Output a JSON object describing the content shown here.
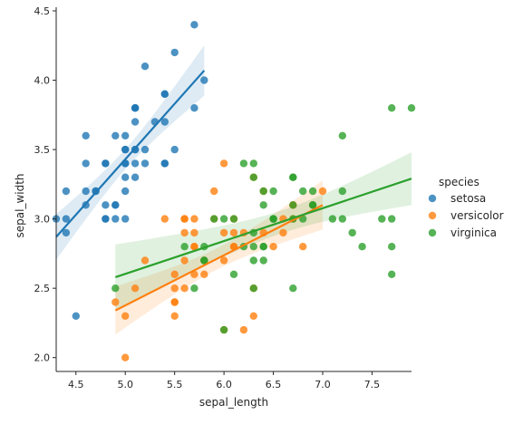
{
  "chart_data": {
    "type": "scatter",
    "title": "",
    "xlabel": "sepal_length",
    "ylabel": "sepal_width",
    "xlim": [
      4.3,
      7.9
    ],
    "ylim": [
      1.9,
      4.5
    ],
    "xticks": [
      "4.5",
      "5.0",
      "5.5",
      "6.0",
      "6.5",
      "7.0",
      "7.5"
    ],
    "yticks": [
      "2.0",
      "2.5",
      "3.0",
      "3.5",
      "4.0",
      "4.5"
    ],
    "grid": false,
    "legend": {
      "title": "species",
      "placement": "right"
    },
    "series": [
      {
        "name": "setosa",
        "color": "#1f77b4",
        "points": [
          [
            5.1,
            3.5
          ],
          [
            4.9,
            3.0
          ],
          [
            4.7,
            3.2
          ],
          [
            4.6,
            3.1
          ],
          [
            5.0,
            3.6
          ],
          [
            5.4,
            3.9
          ],
          [
            4.6,
            3.4
          ],
          [
            5.0,
            3.4
          ],
          [
            4.4,
            2.9
          ],
          [
            4.9,
            3.1
          ],
          [
            5.4,
            3.7
          ],
          [
            4.8,
            3.4
          ],
          [
            4.8,
            3.0
          ],
          [
            4.3,
            3.0
          ],
          [
            5.8,
            4.0
          ],
          [
            5.7,
            4.4
          ],
          [
            5.4,
            3.9
          ],
          [
            5.1,
            3.5
          ],
          [
            5.7,
            3.8
          ],
          [
            5.1,
            3.8
          ],
          [
            5.4,
            3.4
          ],
          [
            5.1,
            3.7
          ],
          [
            4.6,
            3.6
          ],
          [
            5.1,
            3.3
          ],
          [
            4.8,
            3.4
          ],
          [
            5.0,
            3.0
          ],
          [
            5.0,
            3.4
          ],
          [
            5.2,
            3.5
          ],
          [
            5.2,
            3.4
          ],
          [
            4.7,
            3.2
          ],
          [
            4.8,
            3.1
          ],
          [
            5.4,
            3.4
          ],
          [
            5.2,
            4.1
          ],
          [
            5.5,
            4.2
          ],
          [
            4.9,
            3.1
          ],
          [
            5.0,
            3.2
          ],
          [
            5.5,
            3.5
          ],
          [
            4.9,
            3.6
          ],
          [
            4.4,
            3.0
          ],
          [
            5.1,
            3.4
          ],
          [
            5.0,
            3.5
          ],
          [
            4.5,
            2.3
          ],
          [
            4.4,
            3.2
          ],
          [
            5.0,
            3.5
          ],
          [
            5.1,
            3.8
          ],
          [
            4.8,
            3.0
          ],
          [
            5.1,
            3.8
          ],
          [
            4.6,
            3.2
          ],
          [
            5.3,
            3.7
          ],
          [
            5.0,
            3.3
          ]
        ],
        "regression": {
          "x": [
            4.3,
            5.8
          ],
          "y": [
            2.87,
            4.07
          ]
        }
      },
      {
        "name": "versicolor",
        "color": "#ff7f0e",
        "points": [
          [
            7.0,
            3.2
          ],
          [
            6.4,
            3.2
          ],
          [
            6.9,
            3.1
          ],
          [
            5.5,
            2.3
          ],
          [
            6.5,
            2.8
          ],
          [
            5.7,
            2.8
          ],
          [
            6.3,
            3.3
          ],
          [
            4.9,
            2.4
          ],
          [
            6.6,
            2.9
          ],
          [
            5.2,
            2.7
          ],
          [
            5.0,
            2.0
          ],
          [
            5.9,
            3.0
          ],
          [
            6.0,
            2.2
          ],
          [
            6.1,
            2.9
          ],
          [
            5.6,
            2.9
          ],
          [
            6.7,
            3.1
          ],
          [
            5.6,
            3.0
          ],
          [
            5.8,
            2.7
          ],
          [
            6.2,
            2.2
          ],
          [
            5.6,
            2.5
          ],
          [
            5.9,
            3.2
          ],
          [
            6.1,
            2.8
          ],
          [
            6.3,
            2.5
          ],
          [
            6.1,
            2.8
          ],
          [
            6.4,
            2.9
          ],
          [
            6.6,
            3.0
          ],
          [
            6.8,
            2.8
          ],
          [
            6.7,
            3.0
          ],
          [
            6.0,
            2.9
          ],
          [
            5.7,
            2.6
          ],
          [
            5.5,
            2.4
          ],
          [
            5.5,
            2.4
          ],
          [
            5.8,
            2.7
          ],
          [
            6.0,
            2.7
          ],
          [
            5.4,
            3.0
          ],
          [
            6.0,
            3.4
          ],
          [
            6.7,
            3.1
          ],
          [
            6.3,
            2.3
          ],
          [
            5.6,
            3.0
          ],
          [
            5.5,
            2.5
          ],
          [
            5.5,
            2.6
          ],
          [
            6.1,
            3.0
          ],
          [
            5.8,
            2.6
          ],
          [
            5.0,
            2.3
          ],
          [
            5.6,
            2.7
          ],
          [
            5.7,
            3.0
          ],
          [
            5.7,
            2.9
          ],
          [
            6.2,
            2.9
          ],
          [
            5.1,
            2.5
          ],
          [
            5.7,
            2.8
          ]
        ],
        "regression": {
          "x": [
            4.9,
            7.0
          ],
          "y": [
            2.34,
            3.1
          ]
        }
      },
      {
        "name": "virginica",
        "color": "#2ca02c",
        "points": [
          [
            6.3,
            3.3
          ],
          [
            5.8,
            2.7
          ],
          [
            7.1,
            3.0
          ],
          [
            6.3,
            2.9
          ],
          [
            6.5,
            3.0
          ],
          [
            7.6,
            3.0
          ],
          [
            4.9,
            2.5
          ],
          [
            7.3,
            2.9
          ],
          [
            6.7,
            2.5
          ],
          [
            7.2,
            3.6
          ],
          [
            6.5,
            3.2
          ],
          [
            6.4,
            2.7
          ],
          [
            6.8,
            3.0
          ],
          [
            5.7,
            2.5
          ],
          [
            5.8,
            2.8
          ],
          [
            6.4,
            3.2
          ],
          [
            6.5,
            3.0
          ],
          [
            7.7,
            3.8
          ],
          [
            7.7,
            2.6
          ],
          [
            6.0,
            2.2
          ],
          [
            6.9,
            3.2
          ],
          [
            5.6,
            2.8
          ],
          [
            7.7,
            2.8
          ],
          [
            6.3,
            2.7
          ],
          [
            6.7,
            3.3
          ],
          [
            7.2,
            3.2
          ],
          [
            6.2,
            2.8
          ],
          [
            6.1,
            3.0
          ],
          [
            6.4,
            2.8
          ],
          [
            7.2,
            3.0
          ],
          [
            7.4,
            2.8
          ],
          [
            7.9,
            3.8
          ],
          [
            6.4,
            2.8
          ],
          [
            6.3,
            2.8
          ],
          [
            6.1,
            2.6
          ],
          [
            7.7,
            3.0
          ],
          [
            6.3,
            3.4
          ],
          [
            6.4,
            3.1
          ],
          [
            6.0,
            3.0
          ],
          [
            6.9,
            3.1
          ],
          [
            6.7,
            3.1
          ],
          [
            6.9,
            3.1
          ],
          [
            5.8,
            2.7
          ],
          [
            6.8,
            3.2
          ],
          [
            6.7,
            3.3
          ],
          [
            6.7,
            3.0
          ],
          [
            6.3,
            2.5
          ],
          [
            6.5,
            3.0
          ],
          [
            6.2,
            3.4
          ],
          [
            5.9,
            3.0
          ]
        ],
        "regression": {
          "x": [
            4.9,
            7.9
          ],
          "y": [
            2.58,
            3.29
          ]
        }
      }
    ]
  }
}
